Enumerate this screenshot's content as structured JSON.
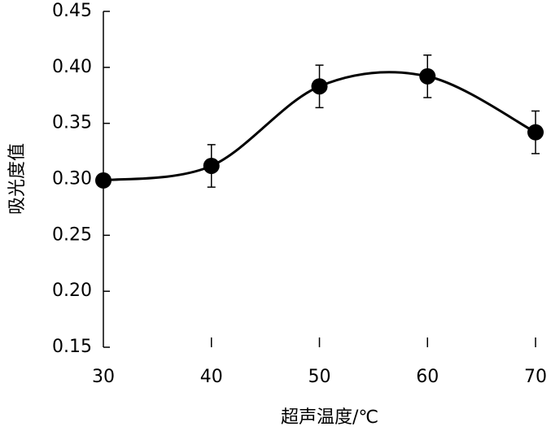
{
  "chart_data": {
    "type": "line",
    "x_label": "超声温度/℃",
    "y_label": "吸光度值",
    "x": [
      30,
      40,
      50,
      60,
      70
    ],
    "series": [
      {
        "name": "吸光度值",
        "color": "#000000",
        "values": [
          0.299,
          0.312,
          0.383,
          0.392,
          0.342
        ],
        "errors": [
          0.005,
          0.019,
          0.019,
          0.019,
          0.019
        ]
      }
    ],
    "xlim": [
      30,
      70
    ],
    "xticks": [
      30,
      40,
      50,
      60,
      70
    ],
    "ylim": [
      0.15,
      0.45
    ],
    "yticks": [
      0.15,
      {
        "value": 0.2,
        "label": "0.20"
      },
      0.25,
      {
        "value": 0.3,
        "label": "0.30"
      },
      0.35,
      {
        "value": 0.4,
        "label": "0.40"
      },
      0.45
    ],
    "smooth": true,
    "grid": false
  }
}
